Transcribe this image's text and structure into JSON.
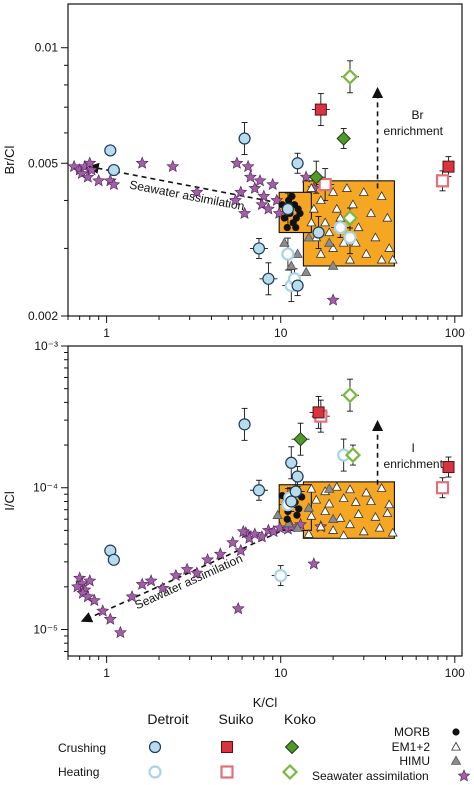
{
  "chart_data": [
    {
      "type": "scatter",
      "panel": "top",
      "ylabel": "Br/Cl",
      "xscale": "log",
      "yscale": "log",
      "xlim": [
        0.6,
        110
      ],
      "ylim": [
        0.002,
        0.013
      ],
      "y_ticks": [
        "0.002",
        "0.005",
        "0.01"
      ],
      "x_ticks": [
        "1",
        "10",
        "100"
      ],
      "boxes": [
        {
          "name": "MORB",
          "x": [
            9.8,
            15
          ],
          "y": [
            0.0033,
            0.0042
          ],
          "color": "#f5a623"
        },
        {
          "name": "EM1+2 / HIMU",
          "x": [
            13.5,
            45
          ],
          "y": [
            0.0027,
            0.0045
          ],
          "color": "#f5a623"
        }
      ],
      "annotations": [
        {
          "text": "Seawater assimilation",
          "arrow_from": [
            11,
            0.0039
          ],
          "arrow_to": [
            0.8,
            0.0049
          ]
        },
        {
          "text": "Br",
          "text2": "enrichment",
          "arrow_from": [
            36,
            0.0043
          ],
          "arrow_to": [
            36,
            0.0078
          ]
        }
      ],
      "series": [
        {
          "name": "Detroit crushing",
          "points": [
            [
              1.05,
              0.0054
            ],
            [
              1.1,
              0.0048
            ],
            [
              6.2,
              0.0058
            ],
            [
              7.5,
              0.003
            ],
            [
              11,
              0.0038
            ],
            [
              12.5,
              0.005
            ],
            [
              8.5,
              0.0025
            ],
            [
              12.5,
              0.0024
            ],
            [
              16.5,
              0.0033
            ]
          ]
        },
        {
          "name": "Detroit heating",
          "points": [
            [
              11.5,
              0.0024
            ],
            [
              12,
              0.0025
            ],
            [
              11,
              0.0029
            ],
            [
              22,
              0.0034
            ],
            [
              25,
              0.0032
            ]
          ]
        },
        {
          "name": "Suiko crushing",
          "points": [
            [
              17,
              0.0069
            ],
            [
              92,
              0.0049
            ]
          ]
        },
        {
          "name": "Suiko heating",
          "points": [
            [
              18,
              0.0044
            ],
            [
              85,
              0.0045
            ]
          ]
        },
        {
          "name": "Koko crushing",
          "points": [
            [
              16,
              0.0046
            ],
            [
              23,
              0.0058
            ]
          ]
        },
        {
          "name": "Koko heating",
          "points": [
            [
              25,
              0.0084
            ],
            [
              25,
              0.0036
            ]
          ]
        },
        {
          "name": "MORB",
          "points": [
            [
              10.2,
              0.0039
            ],
            [
              10.8,
              0.0038
            ],
            [
              11.3,
              0.0037
            ],
            [
              12,
              0.0039
            ],
            [
              12.6,
              0.0038
            ],
            [
              11.1,
              0.004
            ],
            [
              12.3,
              0.0036
            ],
            [
              11.8,
              0.0035
            ],
            [
              10.5,
              0.0036
            ],
            [
              12.9,
              0.0037
            ],
            [
              10.9,
              0.0034
            ],
            [
              11.6,
              0.0041
            ],
            [
              12.2,
              0.0034
            ]
          ]
        },
        {
          "name": "EM1+2",
          "points": [
            [
              15,
              0.0043
            ],
            [
              17,
              0.004
            ],
            [
              20,
              0.0042
            ],
            [
              24,
              0.0043
            ],
            [
              30,
              0.0042
            ],
            [
              38,
              0.0041
            ],
            [
              15.5,
              0.0038
            ],
            [
              18,
              0.0035
            ],
            [
              21,
              0.0038
            ],
            [
              26,
              0.0039
            ],
            [
              33,
              0.0037
            ],
            [
              41,
              0.0036
            ],
            [
              16,
              0.0032
            ],
            [
              19,
              0.0033
            ],
            [
              23,
              0.0031
            ],
            [
              28,
              0.0034
            ],
            [
              35,
              0.0032
            ],
            [
              42,
              0.003
            ],
            [
              17,
              0.0029
            ],
            [
              20,
              0.003
            ],
            [
              25,
              0.0028
            ],
            [
              31,
              0.0029
            ],
            [
              38,
              0.0028
            ],
            [
              44,
              0.0028
            ],
            [
              15,
              0.0035
            ],
            [
              22,
              0.0036
            ],
            [
              27,
              0.0031
            ]
          ]
        },
        {
          "name": "HIMU",
          "points": [
            [
              10.5,
              0.0031
            ],
            [
              12.5,
              0.0029
            ],
            [
              11.5,
              0.0027
            ],
            [
              14.5,
              0.0032
            ],
            [
              19,
              0.0031
            ],
            [
              14,
              0.0026
            ],
            [
              20,
              0.0027
            ]
          ]
        },
        {
          "name": "Seawater assimilation",
          "points": [
            [
              0.65,
              0.0049
            ],
            [
              0.7,
              0.0048
            ],
            [
              0.72,
              0.0047
            ],
            [
              0.75,
              0.0049
            ],
            [
              0.78,
              0.0046
            ],
            [
              0.82,
              0.0048
            ],
            [
              0.8,
              0.005
            ],
            [
              0.9,
              0.0045
            ],
            [
              1.05,
              0.0045
            ],
            [
              1.1,
              0.0044
            ],
            [
              1.6,
              0.005
            ],
            [
              2.4,
              0.0049
            ],
            [
              3.3,
              0.0042
            ],
            [
              5.6,
              0.005
            ],
            [
              6.5,
              0.0049
            ],
            [
              5.9,
              0.0042
            ],
            [
              7.1,
              0.0043
            ],
            [
              6.7,
              0.0046
            ],
            [
              7.6,
              0.0045
            ],
            [
              8.0,
              0.0041
            ],
            [
              7.8,
              0.0039
            ],
            [
              8.5,
              0.0038
            ],
            [
              9.0,
              0.0044
            ],
            [
              9.5,
              0.004
            ],
            [
              9.8,
              0.0037
            ],
            [
              5.5,
              0.004
            ],
            [
              6.2,
              0.0037
            ],
            [
              14,
              0.0046
            ],
            [
              15.5,
              0.0043
            ],
            [
              20,
              0.0022
            ]
          ]
        }
      ]
    },
    {
      "type": "scatter",
      "panel": "bottom",
      "ylabel": "I/Cl",
      "xlabel": "K/Cl",
      "xscale": "log",
      "yscale": "log",
      "xlim": [
        0.6,
        110
      ],
      "ylim": [
        6.5e-06,
        0.001
      ],
      "y_ticks": [
        "10⁻⁵",
        "10⁻⁴",
        "10⁻³"
      ],
      "x_ticks": [
        "1",
        "10",
        "100"
      ],
      "boxes": [
        {
          "name": "MORB",
          "x": [
            9.8,
            15
          ],
          "y": [
            5e-05,
            0.000105
          ],
          "color": "#f5a623"
        },
        {
          "name": "EM1+2 / HIMU",
          "x": [
            13.5,
            45
          ],
          "y": [
            4.4e-05,
            0.00011
          ],
          "color": "#f5a623"
        }
      ],
      "annotations": [
        {
          "text": "Seawater assimilation",
          "arrow_from": [
            11,
            5.2e-05
          ],
          "arrow_to": [
            0.73,
            1.15e-05
          ]
        },
        {
          "text": "I",
          "text2": "enrichment",
          "arrow_from": [
            36,
            0.000105
          ],
          "arrow_to": [
            36,
            0.00029
          ]
        }
      ],
      "series": [
        {
          "name": "Detroit crushing",
          "points": [
            [
              1.05,
              3.6e-05
            ],
            [
              1.1,
              3.1e-05
            ],
            [
              6.2,
              0.00028
            ],
            [
              7.5,
              9.6e-05
            ],
            [
              11.5,
              0.00015
            ],
            [
              12.5,
              0.00012
            ],
            [
              12.2,
              9.4e-05
            ],
            [
              11.5,
              8e-05
            ]
          ]
        },
        {
          "name": "Detroit heating",
          "points": [
            [
              11,
              7.6e-05
            ],
            [
              11.3,
              8.5e-05
            ],
            [
              23,
              0.00017
            ],
            [
              10,
              2.4e-05
            ]
          ]
        },
        {
          "name": "Suiko crushing",
          "points": [
            [
              16.5,
              0.00034
            ],
            [
              92,
              0.00014
            ]
          ]
        },
        {
          "name": "Suiko heating",
          "points": [
            [
              17,
              0.00032
            ],
            [
              85,
              0.0001
            ]
          ]
        },
        {
          "name": "Koko crushing",
          "points": [
            [
              13,
              0.00022
            ]
          ]
        },
        {
          "name": "Koko heating",
          "points": [
            [
              25,
              0.00045
            ],
            [
              26,
              0.00017
            ]
          ]
        },
        {
          "name": "MORB",
          "points": [
            [
              10.2,
              8.8e-05
            ],
            [
              10.8,
              8.2e-05
            ],
            [
              11.4,
              7.5e-05
            ],
            [
              12.1,
              7.9e-05
            ],
            [
              12.7,
              7.1e-05
            ],
            [
              11,
              6.8e-05
            ],
            [
              12.4,
              6.4e-05
            ],
            [
              11.7,
              9.1e-05
            ],
            [
              10.6,
              7.8e-05
            ],
            [
              13.2,
              8.6e-05
            ],
            [
              10.9,
              6e-05
            ]
          ]
        },
        {
          "name": "EM1+2",
          "points": [
            [
              15,
              9.8e-05
            ],
            [
              18,
              9.4e-05
            ],
            [
              21,
              0.000101
            ],
            [
              25,
              9.7e-05
            ],
            [
              31,
              9.2e-05
            ],
            [
              38,
              9.9e-05
            ],
            [
              16,
              8.2e-05
            ],
            [
              19,
              7.7e-05
            ],
            [
              23,
              8.4e-05
            ],
            [
              27,
              7.9e-05
            ],
            [
              33,
              8e-05
            ],
            [
              42,
              7.6e-05
            ],
            [
              15,
              6.3e-05
            ],
            [
              18,
              6.8e-05
            ],
            [
              22,
              6.1e-05
            ],
            [
              28,
              6.5e-05
            ],
            [
              35,
              6.2e-05
            ],
            [
              41,
              6.6e-05
            ],
            [
              17,
              5.3e-05
            ],
            [
              20,
              5e-05
            ],
            [
              25,
              5.5e-05
            ],
            [
              30,
              4.9e-05
            ],
            [
              37,
              5.2e-05
            ],
            [
              44,
              4.8e-05
            ],
            [
              14.5,
              4.7e-05
            ],
            [
              23,
              4.6e-05
            ]
          ]
        },
        {
          "name": "HIMU",
          "points": [
            [
              9.6,
              6.4e-05
            ],
            [
              11.1,
              5.6e-05
            ],
            [
              12.5,
              5.2e-05
            ],
            [
              14.5,
              7.2e-05
            ],
            [
              19,
              9.8e-05
            ],
            [
              20,
              6e-05
            ]
          ]
        },
        {
          "name": "Seawater assimilation",
          "points": [
            [
              0.7,
              2.3e-05
            ],
            [
              0.72,
              2.1e-05
            ],
            [
              0.75,
              1.9e-05
            ],
            [
              0.73,
              1.8e-05
            ],
            [
              0.78,
              1.7e-05
            ],
            [
              0.68,
              2e-05
            ],
            [
              0.8,
              2.2e-05
            ],
            [
              0.85,
              1.6e-05
            ],
            [
              0.95,
              1.35e-05
            ],
            [
              1.05,
              1.18e-05
            ],
            [
              1.2,
              9.5e-06
            ],
            [
              1.4,
              1.7e-05
            ],
            [
              1.6,
              2.08e-05
            ],
            [
              1.8,
              2.2e-05
            ],
            [
              2.1,
              1.95e-05
            ],
            [
              2.5,
              2.4e-05
            ],
            [
              2.9,
              2.65e-05
            ],
            [
              3.3,
              2.5e-05
            ],
            [
              3.8,
              3.1e-05
            ],
            [
              4.5,
              3.4e-05
            ],
            [
              5.3,
              4.1e-05
            ],
            [
              5.9,
              3.6e-05
            ],
            [
              6.3,
              4.8e-05
            ],
            [
              6.6,
              4.4e-05
            ],
            [
              7.1,
              4.7e-05
            ],
            [
              7.8,
              4.5e-05
            ],
            [
              8.5,
              5e-05
            ],
            [
              9.1,
              4.9e-05
            ],
            [
              9.9,
              5.2e-05
            ],
            [
              6.1,
              4.9e-05
            ],
            [
              5.7,
              1.4e-05
            ],
            [
              11,
              5.1e-05
            ],
            [
              11.5,
              5.3e-05
            ],
            [
              13,
              5.5e-05
            ],
            [
              17,
              5.3e-05
            ],
            [
              15.5,
              2.9e-05
            ]
          ]
        }
      ]
    }
  ],
  "legend": {
    "group_titles": [
      "Detroit",
      "Suiko",
      "Koko"
    ],
    "rows": [
      "Crushing",
      "Heating"
    ],
    "symbol_entries": [
      "MORB",
      "EM1+2",
      "HIMU",
      "Seawater assimilation"
    ]
  },
  "colors": {
    "detroit_fill": "#b9dcec",
    "detroit_edge": "#1e3a5f",
    "detroit_heating_edge": "#a8d3ea",
    "suiko_fill": "#d9333f",
    "suiko_heating_edge": "#e0707a",
    "koko_fill": "#4f9a2a",
    "koko_heating_edge": "#79b73f",
    "box_fill": "#f5a623",
    "himu": "#8c8c8c",
    "star": "#a25fa8",
    "arrow": "#111111"
  }
}
